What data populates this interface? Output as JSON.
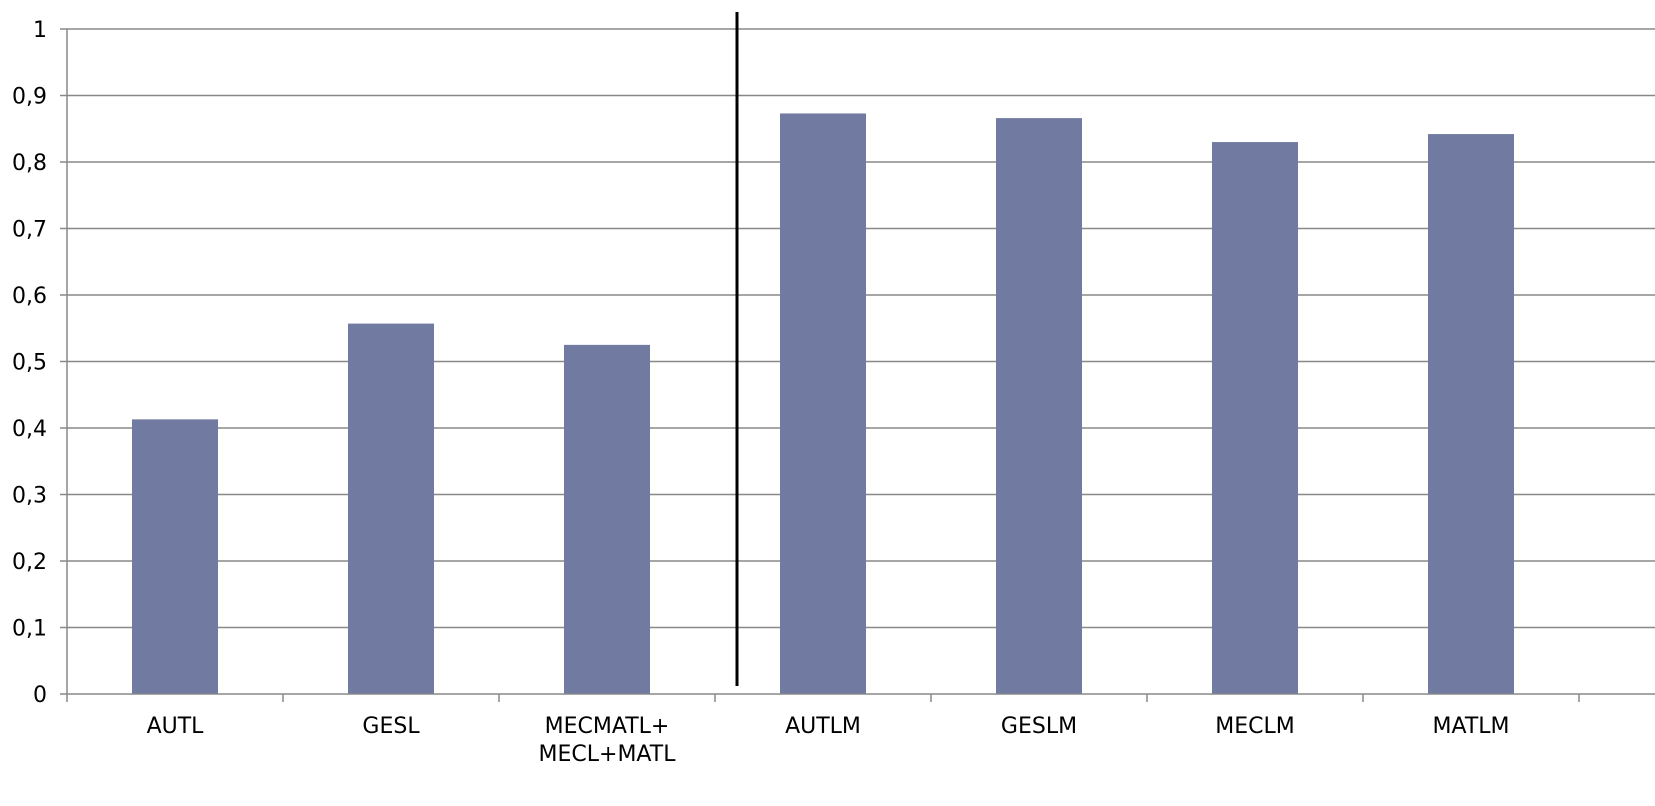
{
  "chart_data": {
    "type": "bar",
    "categories": [
      [
        "AUTL"
      ],
      [
        "GESL"
      ],
      [
        "MECMATL+",
        "MECL+MATL"
      ],
      [
        "AUTLM"
      ],
      [
        "GESLM"
      ],
      [
        "MECLM"
      ],
      [
        "MATLM"
      ]
    ],
    "values": [
      0.413,
      0.557,
      0.525,
      0.873,
      0.866,
      0.83,
      0.842
    ],
    "y_ticks": [
      "0",
      "0,1",
      "0,2",
      "0,3",
      "0,4",
      "0,5",
      "0,6",
      "0,7",
      "0,8",
      "0,9",
      "1"
    ],
    "ylim": [
      0,
      1
    ],
    "grid": true,
    "legend": "none",
    "divider_after_category_index": 2,
    "colors": {
      "bar": "#717ba1",
      "grid": "#888888",
      "axis": "#888888",
      "divider": "#000000",
      "text": "#000000"
    }
  }
}
